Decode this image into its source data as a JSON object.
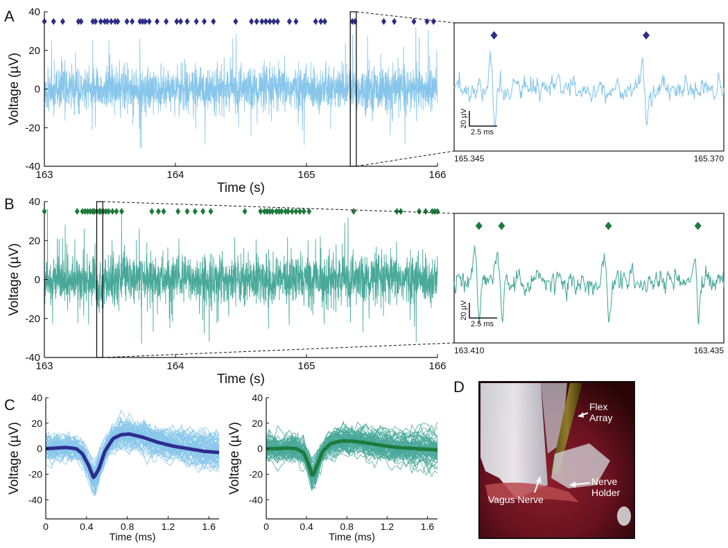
{
  "panels": {
    "A": "A",
    "B": "B",
    "C": "C",
    "D": "D"
  },
  "colors": {
    "traceA": "#87c6ea",
    "traceB": "#48a99a",
    "markerA": "#2d2d86",
    "markerB": "#1e7a3c",
    "meanA": "#2f2b8f",
    "meanB": "#1e7a3c"
  },
  "chart_data": [
    {
      "id": "A-main",
      "type": "line",
      "xlabel": "Time (s)",
      "ylabel": "Voltage (µV)",
      "xlim": [
        163,
        166
      ],
      "ylim": [
        -40,
        40
      ],
      "xticks": [
        "163",
        "164",
        "165",
        "166"
      ],
      "yticks": [
        "-40",
        "-20",
        "0",
        "20",
        "40"
      ],
      "series": [
        {
          "values_desc": "noise",
          "noise_amplitude": 9
        }
      ],
      "spike_times": [
        163.0,
        163.07,
        163.14,
        163.26,
        163.28,
        163.37,
        163.39,
        163.43,
        163.46,
        163.48,
        163.51,
        163.54,
        163.56,
        163.63,
        163.67,
        163.73,
        163.75,
        163.77,
        163.8,
        163.86,
        163.93,
        164.01,
        164.04,
        164.09,
        164.16,
        164.22,
        164.29,
        164.46,
        164.58,
        164.62,
        164.66,
        164.69,
        164.72,
        164.75,
        164.78,
        164.87,
        164.92,
        165.07,
        165.11,
        165.14,
        165.35,
        165.37,
        165.59,
        165.67,
        165.82,
        165.92,
        165.97
      ],
      "spike_level": 35,
      "zoom_window": [
        165.345,
        165.37
      ]
    },
    {
      "id": "A-zoom",
      "type": "line",
      "xtick_labels": [
        "165.345",
        "165.370"
      ],
      "scale_y": "20 µV",
      "scale_x": "2.5 ms",
      "spike_times": [
        165.3487,
        165.3628
      ]
    },
    {
      "id": "B-main",
      "type": "line",
      "xlabel": "Time (s)",
      "ylabel": "Voltage (µV)",
      "xlim": [
        163,
        166
      ],
      "ylim": [
        -40,
        40
      ],
      "xticks": [
        "163",
        "164",
        "165",
        "166"
      ],
      "yticks": [
        "-40",
        "-20",
        "0",
        "20",
        "40"
      ],
      "series": [
        {
          "values_desc": "noise",
          "noise_amplitude": 10
        }
      ],
      "spike_times": [
        163.0,
        163.25,
        163.29,
        163.31,
        163.33,
        163.35,
        163.37,
        163.38,
        163.4,
        163.42,
        163.43,
        163.45,
        163.47,
        163.49,
        163.52,
        163.55,
        163.59,
        163.82,
        163.87,
        163.91,
        164.02,
        164.09,
        164.15,
        164.21,
        164.27,
        164.53,
        164.65,
        164.68,
        164.7,
        164.72,
        164.74,
        164.77,
        164.79,
        164.81,
        164.84,
        164.86,
        164.89,
        164.92,
        164.95,
        164.98,
        165.02,
        165.36,
        165.69,
        165.72,
        165.86,
        165.91,
        165.96,
        165.98,
        166.0
      ],
      "spike_level": 35,
      "zoom_window": [
        163.41,
        163.435
      ]
    },
    {
      "id": "B-zoom",
      "type": "line",
      "xtick_labels": [
        "163.410",
        "163.435"
      ],
      "scale_y": "20 µV",
      "scale_x": "2.5 ms",
      "spike_times": [
        163.4123,
        163.4144,
        163.4243,
        163.4326
      ]
    },
    {
      "id": "C-left",
      "type": "line",
      "xlabel": "Time (ms)",
      "ylabel": "Voltage (µV)",
      "xlim": [
        0,
        1.7
      ],
      "ylim": [
        -55,
        40
      ],
      "xticks": [
        "0",
        "0.4",
        "0.8",
        "1.2",
        "1.6"
      ],
      "yticks": [
        "-40",
        "-20",
        "0",
        "20",
        "40"
      ],
      "mean_waveform": {
        "x": [
          0,
          0.1,
          0.2,
          0.3,
          0.36,
          0.42,
          0.47,
          0.52,
          0.58,
          0.66,
          0.74,
          0.82,
          0.95,
          1.1,
          1.25,
          1.4,
          1.55,
          1.7
        ],
        "y": [
          0,
          0.5,
          1,
          0,
          -4,
          -13,
          -23,
          -16,
          -2,
          8,
          11,
          11.5,
          9,
          5,
          2,
          0,
          -2,
          -3
        ]
      }
    },
    {
      "id": "C-right",
      "type": "line",
      "xlabel": "Time (ms)",
      "ylabel": "Voltage (µV)",
      "xlim": [
        0,
        1.7
      ],
      "ylim": [
        -55,
        40
      ],
      "xticks": [
        "0",
        "0.4",
        "0.8",
        "1.2",
        "1.6"
      ],
      "yticks": [
        "-40",
        "-20",
        "0",
        "20",
        "40"
      ],
      "mean_waveform": {
        "x": [
          0,
          0.1,
          0.2,
          0.3,
          0.37,
          0.42,
          0.46,
          0.5,
          0.56,
          0.64,
          0.74,
          0.85,
          1.0,
          1.15,
          1.3,
          1.5,
          1.7
        ],
        "y": [
          0,
          0,
          0.5,
          0,
          -3,
          -12,
          -22,
          -14,
          -2,
          4,
          6,
          6,
          4.5,
          2.5,
          1,
          0,
          -1
        ]
      }
    }
  ],
  "photo": {
    "labels": {
      "flex_array_1": "Flex",
      "flex_array_2": "Array",
      "nerve_holder_1": "Nerve",
      "nerve_holder_2": "Holder",
      "vagus_nerve": "Vagus Nerve"
    }
  }
}
